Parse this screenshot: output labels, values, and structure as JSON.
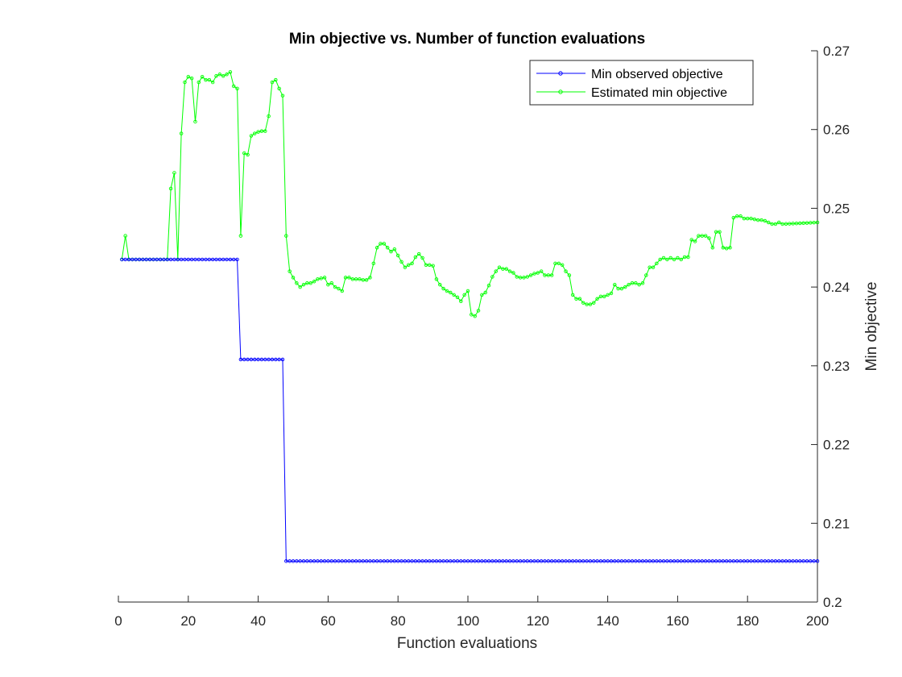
{
  "chart_data": {
    "type": "line",
    "title": "Min objective vs. Number of function evaluations",
    "xlabel": "Function evaluations",
    "ylabel": "Min objective",
    "xlim": [
      0,
      200
    ],
    "ylim": [
      0.2,
      0.27
    ],
    "xticks": [
      "0",
      "20",
      "40",
      "60",
      "80",
      "100",
      "120",
      "140",
      "160",
      "180",
      "200"
    ],
    "yticks": [
      "0.2",
      "0.21",
      "0.22",
      "0.23",
      "0.24",
      "0.25",
      "0.26",
      "0.27"
    ],
    "y_axis_location": "right",
    "grid": false,
    "legend_position": "top-right",
    "series": [
      {
        "name": "Min observed objective",
        "color": "#0000ff",
        "marker": "circle",
        "points": [
          [
            1,
            0.2435
          ],
          [
            34,
            0.2435
          ],
          [
            35,
            0.2308
          ],
          [
            47,
            0.2308
          ],
          [
            48,
            0.2052
          ],
          [
            200,
            0.2052
          ]
        ]
      },
      {
        "name": "Estimated min objective",
        "color": "#00ff00",
        "marker": "circle",
        "points": [
          [
            1,
            0.2435
          ],
          [
            2,
            0.2465
          ],
          [
            3,
            0.2435
          ],
          [
            14,
            0.2435
          ],
          [
            15,
            0.2525
          ],
          [
            16,
            0.2545
          ],
          [
            17,
            0.2435
          ],
          [
            18,
            0.2595
          ],
          [
            19,
            0.266
          ],
          [
            20,
            0.2667
          ],
          [
            21,
            0.2665
          ],
          [
            22,
            0.261
          ],
          [
            23,
            0.266
          ],
          [
            24,
            0.2667
          ],
          [
            25,
            0.2663
          ],
          [
            26,
            0.2663
          ],
          [
            27,
            0.266
          ],
          [
            28,
            0.2668
          ],
          [
            29,
            0.267
          ],
          [
            30,
            0.2668
          ],
          [
            31,
            0.267
          ],
          [
            32,
            0.2673
          ],
          [
            33,
            0.2655
          ],
          [
            34,
            0.2652
          ],
          [
            35,
            0.2465
          ],
          [
            36,
            0.257
          ],
          [
            37,
            0.2568
          ],
          [
            38,
            0.2592
          ],
          [
            39,
            0.2595
          ],
          [
            40,
            0.2597
          ],
          [
            41,
            0.2598
          ],
          [
            42,
            0.2598
          ],
          [
            43,
            0.2617
          ],
          [
            44,
            0.266
          ],
          [
            45,
            0.2663
          ],
          [
            46,
            0.2652
          ],
          [
            47,
            0.2643
          ],
          [
            48,
            0.2465
          ],
          [
            49,
            0.242
          ],
          [
            50,
            0.2412
          ],
          [
            51,
            0.2405
          ],
          [
            52,
            0.24
          ],
          [
            53,
            0.2403
          ],
          [
            54,
            0.2405
          ],
          [
            55,
            0.2405
          ],
          [
            56,
            0.2407
          ],
          [
            57,
            0.241
          ],
          [
            58,
            0.2411
          ],
          [
            59,
            0.2412
          ],
          [
            60,
            0.2403
          ],
          [
            61,
            0.2405
          ],
          [
            62,
            0.24
          ],
          [
            63,
            0.2398
          ],
          [
            64,
            0.2395
          ],
          [
            65,
            0.2412
          ],
          [
            66,
            0.2412
          ],
          [
            67,
            0.241
          ],
          [
            68,
            0.241
          ],
          [
            69,
            0.241
          ],
          [
            70,
            0.2409
          ],
          [
            71,
            0.2409
          ],
          [
            72,
            0.2412
          ],
          [
            73,
            0.243
          ],
          [
            74,
            0.245
          ],
          [
            75,
            0.2455
          ],
          [
            76,
            0.2455
          ],
          [
            77,
            0.245
          ],
          [
            78,
            0.2445
          ],
          [
            79,
            0.2448
          ],
          [
            80,
            0.244
          ],
          [
            81,
            0.2432
          ],
          [
            82,
            0.2425
          ],
          [
            83,
            0.2428
          ],
          [
            84,
            0.243
          ],
          [
            85,
            0.2438
          ],
          [
            86,
            0.2442
          ],
          [
            87,
            0.2437
          ],
          [
            88,
            0.2428
          ],
          [
            89,
            0.2428
          ],
          [
            90,
            0.2427
          ],
          [
            91,
            0.241
          ],
          [
            92,
            0.2403
          ],
          [
            93,
            0.2398
          ],
          [
            94,
            0.2395
          ],
          [
            95,
            0.2393
          ],
          [
            96,
            0.239
          ],
          [
            97,
            0.2387
          ],
          [
            98,
            0.2382
          ],
          [
            99,
            0.239
          ],
          [
            100,
            0.2395
          ],
          [
            101,
            0.2365
          ],
          [
            102,
            0.2363
          ],
          [
            103,
            0.237
          ],
          [
            104,
            0.239
          ],
          [
            105,
            0.2393
          ],
          [
            106,
            0.2402
          ],
          [
            107,
            0.2413
          ],
          [
            108,
            0.242
          ],
          [
            109,
            0.2425
          ],
          [
            110,
            0.2423
          ],
          [
            111,
            0.2423
          ],
          [
            112,
            0.242
          ],
          [
            113,
            0.2418
          ],
          [
            114,
            0.2413
          ],
          [
            115,
            0.2412
          ],
          [
            116,
            0.2412
          ],
          [
            117,
            0.2413
          ],
          [
            118,
            0.2415
          ],
          [
            119,
            0.2417
          ],
          [
            120,
            0.2418
          ],
          [
            121,
            0.242
          ],
          [
            122,
            0.2415
          ],
          [
            123,
            0.2415
          ],
          [
            124,
            0.2415
          ],
          [
            125,
            0.243
          ],
          [
            126,
            0.243
          ],
          [
            127,
            0.2428
          ],
          [
            128,
            0.242
          ],
          [
            129,
            0.2415
          ],
          [
            130,
            0.239
          ],
          [
            131,
            0.2385
          ],
          [
            132,
            0.2385
          ],
          [
            133,
            0.238
          ],
          [
            134,
            0.2378
          ],
          [
            135,
            0.2378
          ],
          [
            136,
            0.238
          ],
          [
            137,
            0.2385
          ],
          [
            138,
            0.2388
          ],
          [
            139,
            0.2388
          ],
          [
            140,
            0.239
          ],
          [
            141,
            0.2392
          ],
          [
            142,
            0.2403
          ],
          [
            143,
            0.2398
          ],
          [
            144,
            0.2398
          ],
          [
            145,
            0.24
          ],
          [
            146,
            0.2403
          ],
          [
            147,
            0.2405
          ],
          [
            148,
            0.2405
          ],
          [
            149,
            0.2403
          ],
          [
            150,
            0.2405
          ],
          [
            151,
            0.2415
          ],
          [
            152,
            0.2425
          ],
          [
            153,
            0.2425
          ],
          [
            154,
            0.243
          ],
          [
            155,
            0.2435
          ],
          [
            156,
            0.2437
          ],
          [
            157,
            0.2435
          ],
          [
            158,
            0.2437
          ],
          [
            159,
            0.2435
          ],
          [
            160,
            0.2437
          ],
          [
            161,
            0.2435
          ],
          [
            162,
            0.2438
          ],
          [
            163,
            0.2438
          ],
          [
            164,
            0.246
          ],
          [
            165,
            0.2458
          ],
          [
            166,
            0.2465
          ],
          [
            167,
            0.2465
          ],
          [
            168,
            0.2465
          ],
          [
            169,
            0.2462
          ],
          [
            170,
            0.245
          ],
          [
            171,
            0.247
          ],
          [
            172,
            0.247
          ],
          [
            173,
            0.245
          ],
          [
            174,
            0.2449
          ],
          [
            175,
            0.245
          ],
          [
            176,
            0.2488
          ],
          [
            177,
            0.249
          ],
          [
            178,
            0.249
          ],
          [
            179,
            0.2487
          ],
          [
            180,
            0.2487
          ],
          [
            181,
            0.2487
          ],
          [
            182,
            0.2486
          ],
          [
            183,
            0.2485
          ],
          [
            184,
            0.2485
          ],
          [
            185,
            0.2484
          ],
          [
            186,
            0.2482
          ],
          [
            187,
            0.248
          ],
          [
            188,
            0.248
          ],
          [
            189,
            0.2482
          ],
          [
            190,
            0.248
          ],
          [
            200,
            0.2482
          ]
        ]
      }
    ]
  }
}
